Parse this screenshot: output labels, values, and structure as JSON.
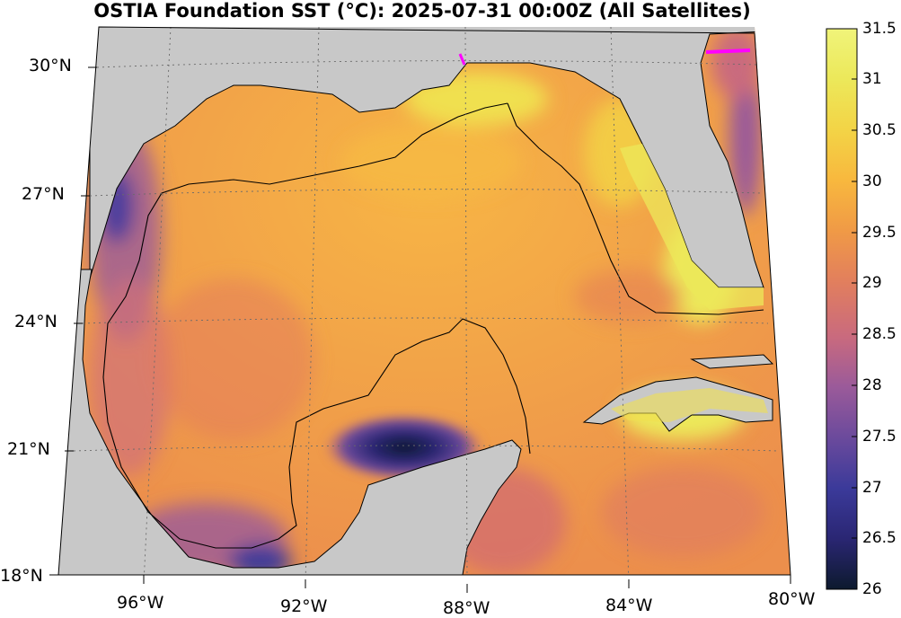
{
  "title": "OSTIA Foundation SST (°C): 2025-07-31 00:00Z (All Satellites)",
  "map": {
    "lat_labels": [
      "30°N",
      "27°N",
      "24°N",
      "21°N",
      "18°N"
    ],
    "lon_labels": [
      "96°W",
      "92°W",
      "88°W",
      "84°W",
      "80°W"
    ]
  },
  "colorbar": {
    "ticks": [
      "31.5",
      "31",
      "30.5",
      "30",
      "29.5",
      "29",
      "28.5",
      "28",
      "27.5",
      "27",
      "26.5",
      "26"
    ],
    "range": [
      26,
      31.5
    ],
    "colors": [
      "#0d1a2e",
      "#2a2673",
      "#3b3a9a",
      "#6b4a9c",
      "#9a5a9a",
      "#c96a7e",
      "#e27f5d",
      "#f09a46",
      "#f8b83e",
      "#f3d446",
      "#ece85a",
      "#f0f47a"
    ]
  },
  "colors": {
    "land": "#c8c8c8",
    "warm_water": "#f09f48",
    "coastline": "#000000",
    "track": "#ff00ff"
  }
}
